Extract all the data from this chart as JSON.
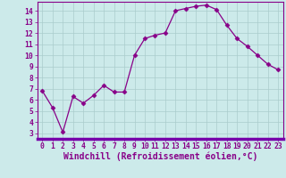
{
  "x": [
    0,
    1,
    2,
    3,
    4,
    5,
    6,
    7,
    8,
    9,
    10,
    11,
    12,
    13,
    14,
    15,
    16,
    17,
    18,
    19,
    20,
    21,
    22,
    23
  ],
  "y": [
    6.8,
    5.3,
    3.1,
    6.3,
    5.7,
    6.4,
    7.3,
    6.7,
    6.7,
    10.0,
    11.5,
    11.8,
    12.0,
    14.0,
    14.2,
    14.4,
    14.5,
    14.1,
    12.7,
    11.5,
    10.8,
    10.0,
    9.2,
    8.7
  ],
  "line_color": "#880088",
  "marker": "D",
  "marker_size": 2.5,
  "bg_color": "#cceaea",
  "grid_color": "#aacccc",
  "ylabel_ticks": [
    3,
    4,
    5,
    6,
    7,
    8,
    9,
    10,
    11,
    12,
    13,
    14
  ],
  "ylim": [
    2.5,
    14.8
  ],
  "xlabel": "Windchill (Refroidissement éolien,°C)",
  "spine_color": "#880088",
  "tick_color": "#880088",
  "tick_fontsize": 5.8,
  "xlabel_fontsize": 7.0,
  "bottom_bar_color": "#7700aa"
}
